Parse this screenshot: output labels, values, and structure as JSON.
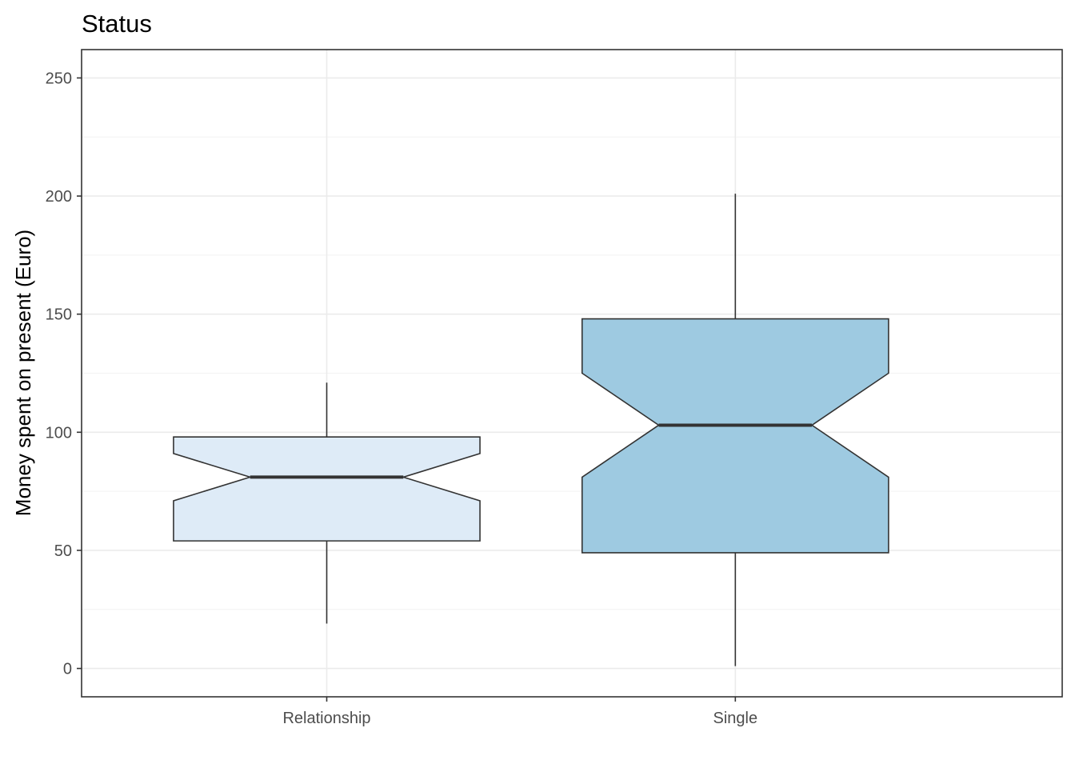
{
  "chart_data": {
    "type": "boxplot",
    "title": "Status",
    "xlabel": "",
    "ylabel": "Money spent on present (Euro)",
    "ylim": [
      -12,
      262
    ],
    "yticks": [
      0,
      50,
      100,
      150,
      200,
      250
    ],
    "grid": true,
    "notched": true,
    "categories": [
      "Relationship",
      "Single"
    ],
    "boxes": [
      {
        "category": "Relationship",
        "whisker_low": 19,
        "q1": 54,
        "median": 81,
        "q3": 98,
        "whisker_high": 121,
        "notch_low": 71,
        "notch_high": 91,
        "fill": "#deebf7"
      },
      {
        "category": "Single",
        "whisker_low": 1,
        "q1": 49,
        "median": 103,
        "q3": 148,
        "whisker_high": 201,
        "notch_low": 81,
        "notch_high": 125,
        "fill": "#9ecae1"
      }
    ]
  }
}
